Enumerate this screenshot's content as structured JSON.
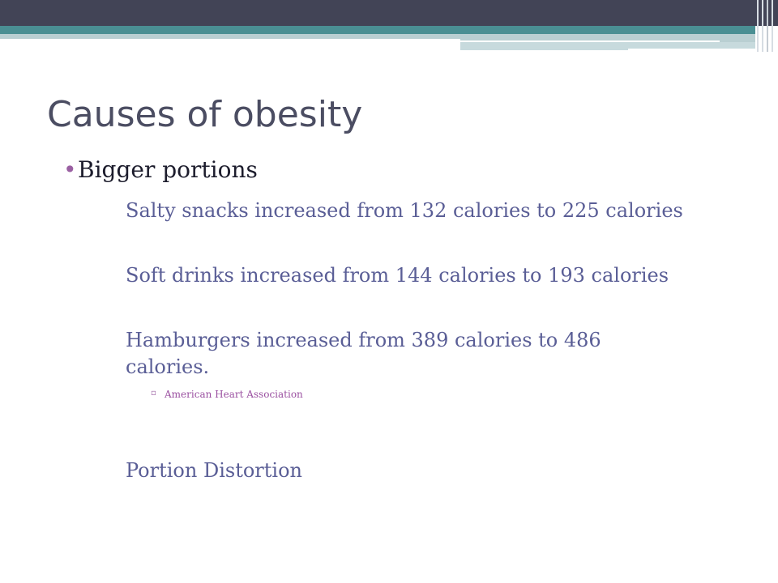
{
  "slide": {
    "title": "Causes of obesity",
    "main_bullet": "Bigger portions",
    "sub_items": [
      "Salty snacks increased from 132 calories to 225 calories",
      "Soft drinks increased from 144 calories to 193 calories",
      "Hamburgers increased from 389 calories to 486 calories."
    ],
    "source": "American Heart Association",
    "last_item": "Portion Distortion"
  },
  "bullets": {
    "level1": "•",
    "level2": "",
    "level3": "▫"
  },
  "colors": {
    "header_dark": "#424456",
    "header_teal": "#4a8f93",
    "title": "#4b4d62",
    "body_sub": "#5a5e96",
    "bullet": "#9a60a2"
  }
}
